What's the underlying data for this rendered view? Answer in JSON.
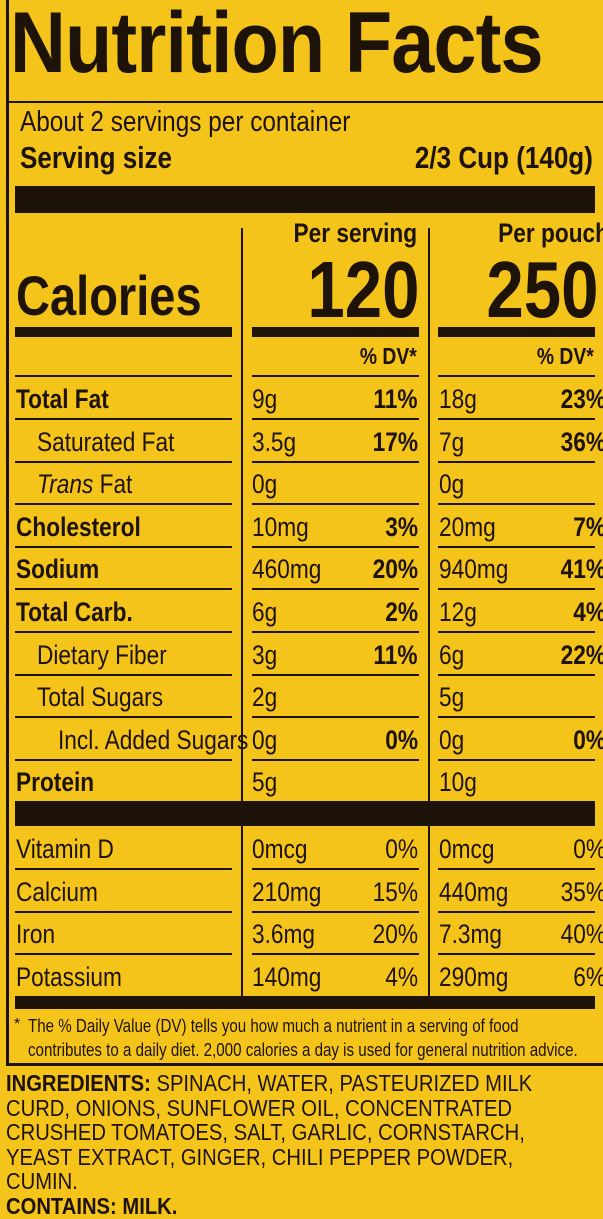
{
  "title": "Nutrition Facts",
  "servings_per_container": "About 2 servings per container",
  "serving_size_label": "Serving size",
  "serving_size_value": "2/3 Cup (140g)",
  "columns": [
    {
      "header": "Per serving",
      "calories": "120",
      "dv_label": "% DV*"
    },
    {
      "header": "Per pouch",
      "calories": "250",
      "dv_label": "% DV*"
    }
  ],
  "calories_label": "Calories",
  "nutrients": [
    {
      "name": "Total Fat",
      "bold": true,
      "indent": 0,
      "s_amt": "9g",
      "s_dv": "11%",
      "p_amt": "18g",
      "p_dv": "23%"
    },
    {
      "name": "Saturated Fat",
      "bold": false,
      "indent": 1,
      "s_amt": "3.5g",
      "s_dv": "17%",
      "p_amt": "7g",
      "p_dv": "36%"
    },
    {
      "name_italic": "Trans",
      "name": " Fat",
      "bold": false,
      "indent": 1,
      "s_amt": "0g",
      "s_dv": "",
      "p_amt": "0g",
      "p_dv": ""
    },
    {
      "name": "Cholesterol",
      "bold": true,
      "indent": 0,
      "s_amt": "10mg",
      "s_dv": "3%",
      "p_amt": "20mg",
      "p_dv": "7%"
    },
    {
      "name": "Sodium",
      "bold": true,
      "indent": 0,
      "s_amt": "460mg",
      "s_dv": "20%",
      "p_amt": "940mg",
      "p_dv": "41%"
    },
    {
      "name": "Total Carb.",
      "bold": true,
      "indent": 0,
      "s_amt": "6g",
      "s_dv": "2%",
      "p_amt": "12g",
      "p_dv": "4%"
    },
    {
      "name": "Dietary Fiber",
      "bold": false,
      "indent": 1,
      "s_amt": "3g",
      "s_dv": "11%",
      "p_amt": "6g",
      "p_dv": "22%"
    },
    {
      "name": "Total Sugars",
      "bold": false,
      "indent": 1,
      "s_amt": "2g",
      "s_dv": "",
      "p_amt": "5g",
      "p_dv": ""
    },
    {
      "name": "Incl. Added Sugars",
      "bold": false,
      "indent": 2,
      "s_amt": "0g",
      "s_dv": "0%",
      "p_amt": "0g",
      "p_dv": "0%"
    },
    {
      "name": "Protein",
      "bold": true,
      "indent": 0,
      "s_amt": "5g",
      "s_dv": "",
      "p_amt": "10g",
      "p_dv": ""
    }
  ],
  "vitamins": [
    {
      "name": "Vitamin D",
      "s_amt": "0mcg",
      "s_dv": "0%",
      "p_amt": "0mcg",
      "p_dv": "0%"
    },
    {
      "name": "Calcium",
      "s_amt": "210mg",
      "s_dv": "15%",
      "p_amt": "440mg",
      "p_dv": "35%"
    },
    {
      "name": "Iron",
      "s_amt": "3.6mg",
      "s_dv": "20%",
      "p_amt": "7.3mg",
      "p_dv": "40%"
    },
    {
      "name": "Potassium",
      "s_amt": "140mg",
      "s_dv": "4%",
      "p_amt": "290mg",
      "p_dv": "6%"
    }
  ],
  "footnote_star": "*",
  "footnote": "The % Daily Value (DV) tells you how much a nutrient in a serving of food contributes to a daily diet. 2,000 calories a day is used for general nutrition advice.",
  "ingredients_label": "INGREDIENTS:",
  "ingredients": "SPINACH, WATER, PASTEURIZED MILK CURD, ONIONS, SUNFLOWER OIL, CONCENTRATED CRUSHED TOMATOES, SALT, GARLIC, CORNSTARCH, YEAST EXTRACT, GINGER, CHILI PEPPER POWDER, CUMIN.",
  "contains_label": "CONTAINS: MILK."
}
